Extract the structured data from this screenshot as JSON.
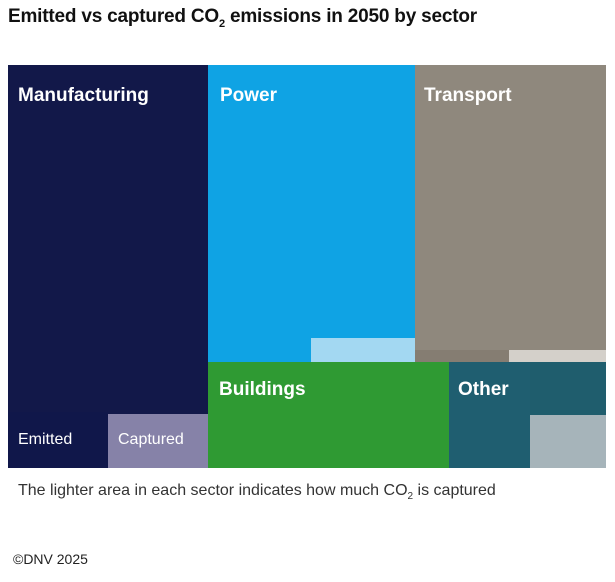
{
  "chart_data": {
    "type": "treemap",
    "title": {
      "pre": "Emitted vs captured CO",
      "sub": "2",
      "post": " emissions in 2050 by sector"
    },
    "sectors": [
      {
        "name": "Manufacturing",
        "share_of_total_pct": 33.5,
        "captured_pct": 7,
        "color": "#121849",
        "captured_color": "#8682a8"
      },
      {
        "name": "Power",
        "share_of_total_pct": 25.7,
        "captured_pct": 4,
        "color": "#0fa3e4",
        "captured_color": "#a3d8f2"
      },
      {
        "name": "Transport",
        "share_of_total_pct": 23.5,
        "captured_pct": 2,
        "color": "#8f887d",
        "captured_color": "#d4d0ca"
      },
      {
        "name": "Buildings",
        "share_of_total_pct": 10.7,
        "captured_pct": 0,
        "color": "#2f9a33",
        "captured_color": "#2f9a33"
      },
      {
        "name": "Other",
        "share_of_total_pct": 6.9,
        "captured_pct": 24,
        "color": "#1f5e70",
        "captured_color": "#a6b4ba"
      }
    ],
    "legend": {
      "emitted": "Emitted",
      "captured": "Captured"
    }
  },
  "note": {
    "pre": "The lighter area in each sector indicates how much CO",
    "sub": "2",
    "post": " is captured"
  },
  "credit": "©DNV 2025"
}
